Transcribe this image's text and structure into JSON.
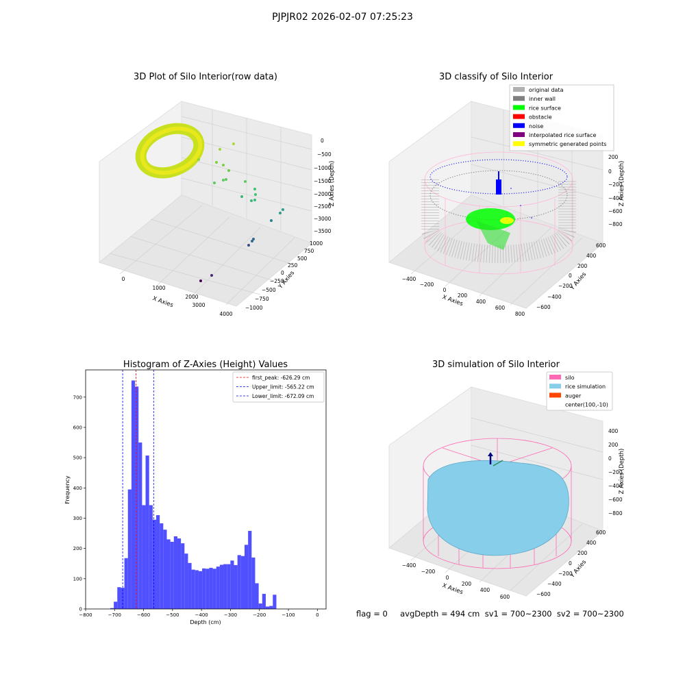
{
  "suptitle": "PJPJR02 2026-02-07 07:25:23",
  "status_text": "flag = 0     avgDepth = 494 cm  sv1 = 700~2300  sv2 = 700~2300",
  "panels": {
    "raw": {
      "title": "3D Plot of Silo Interior(row data)",
      "xlabel": "X Axies",
      "ylabel": "Y Axies",
      "zlabel": "Z Axies (Depth)",
      "xticks": [
        "0",
        "1000",
        "2000",
        "3000",
        "4000"
      ],
      "yticks": [
        "1000",
        "750",
        "500",
        "250",
        "0",
        "−250",
        "−500",
        "−750",
        "−1000"
      ],
      "zticks": [
        "0",
        "−500",
        "−1000",
        "−1500",
        "−2000",
        "−2500",
        "−3000",
        "−3500"
      ],
      "colormap": [
        "#440154",
        "#3b528b",
        "#21918c",
        "#5ec962",
        "#b5de2b",
        "#fde725"
      ]
    },
    "classify": {
      "title": "3D classify of Silo Interior",
      "xlabel": "X Axies",
      "ylabel": "Y Axies",
      "zlabel": "Z Axies (Depth)",
      "xticks": [
        "−400",
        "−200",
        "0",
        "200",
        "400",
        "600",
        "800"
      ],
      "yticks": [
        "600",
        "400",
        "200",
        "0",
        "−200",
        "−400",
        "−600"
      ],
      "zticks": [
        "200",
        "0",
        "−200",
        "−400",
        "−600",
        "−800"
      ],
      "legend": [
        {
          "label": "original data",
          "color": "#b0b0b0"
        },
        {
          "label": "inner wall",
          "color": "#808080"
        },
        {
          "label": "rice surface",
          "color": "#00ff00"
        },
        {
          "label": "obstacle",
          "color": "#ff0000"
        },
        {
          "label": "noise",
          "color": "#0000ff"
        },
        {
          "label": "interpolated rice surface",
          "color": "#800080"
        },
        {
          "label": "symmetric generated points",
          "color": "#ffff00"
        }
      ]
    },
    "simulation": {
      "title": "3D simulation of Silo Interior",
      "xlabel": "X Axies",
      "ylabel": "Y Axies",
      "zlabel": "Z Axies (Depth)",
      "xticks": [
        "−400",
        "−200",
        "0",
        "200",
        "400",
        "600"
      ],
      "yticks": [
        "600",
        "400",
        "200",
        "0",
        "−200",
        "−400",
        "−600"
      ],
      "zticks": [
        "400",
        "200",
        "0",
        "−200",
        "−400",
        "−600",
        "−800"
      ],
      "legend": [
        {
          "label": "silo",
          "color": "#ff69b4"
        },
        {
          "label": "rice simulation",
          "color": "#87ceeb"
        },
        {
          "label": "auger",
          "color": "#ff4500"
        },
        {
          "label": "center(100,-10)",
          "color": "#ffffff"
        }
      ]
    }
  },
  "chart_data": [
    {
      "type": "bar",
      "title": "Histogram of Z-Axies (Height) Values",
      "xlabel": "Depth (cm)",
      "ylabel": "Frequency",
      "xlim": [
        -800,
        30
      ],
      "ylim": [
        0,
        790
      ],
      "bin_width": 12.2,
      "bin_start": -715,
      "values": [
        3,
        24,
        72,
        70,
        168,
        395,
        755,
        735,
        550,
        343,
        507,
        343,
        295,
        310,
        283,
        262,
        230,
        222,
        240,
        233,
        217,
        183,
        152,
        130,
        128,
        125,
        134,
        133,
        136,
        133,
        140,
        146,
        148,
        148,
        160,
        145,
        178,
        175,
        212,
        258,
        170,
        85,
        18,
        50,
        8,
        10,
        47
      ],
      "bar_color": "#5050ff",
      "xticks": [
        "−800",
        "−700",
        "−600",
        "−500",
        "−400",
        "−300",
        "−200",
        "−100",
        "0"
      ],
      "yticks": [
        "0",
        "100",
        "200",
        "300",
        "400",
        "500",
        "600",
        "700"
      ],
      "vlines": [
        {
          "label": "first_peak: -626.29 cm",
          "x": -626.29,
          "color": "#ff0000"
        },
        {
          "label": "Upper_limit: -565.22 cm",
          "x": -565.22,
          "color": "#0000ff"
        },
        {
          "label": "Lower_limit: -672.09 cm",
          "x": -672.09,
          "color": "#0000ff"
        }
      ],
      "legend_loc": "upper right"
    }
  ]
}
